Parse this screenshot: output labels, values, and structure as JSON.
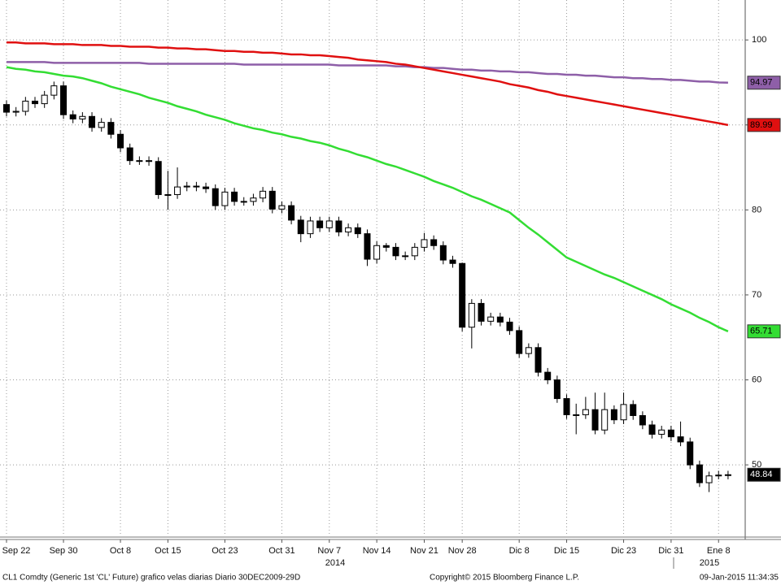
{
  "chart_data": {
    "type": "candlestick",
    "categories": [
      "Sep 22",
      null,
      null,
      null,
      null,
      null,
      "Sep 30",
      null,
      null,
      null,
      null,
      null,
      "Oct 8",
      null,
      null,
      null,
      null,
      "Oct 15",
      null,
      null,
      null,
      null,
      null,
      "Oct 23",
      null,
      null,
      null,
      null,
      null,
      "Oct 31",
      null,
      null,
      null,
      null,
      "Nov 7",
      null,
      null,
      null,
      null,
      "Nov 14",
      null,
      null,
      null,
      null,
      "Nov 21",
      null,
      null,
      null,
      "Nov 28",
      null,
      null,
      null,
      null,
      null,
      "Dic 8",
      null,
      null,
      null,
      null,
      "Dic 15",
      null,
      null,
      null,
      null,
      null,
      "Dic 23",
      null,
      null,
      null,
      null,
      "Dic 31",
      null,
      null,
      null,
      null,
      "Ene 8",
      null
    ],
    "years": [
      "2014",
      "2015"
    ],
    "ohlc": {
      "up_color": "#ffffff",
      "down_color": "#000000",
      "open": [
        92.4,
        91.5,
        91.6,
        92.8,
        92.5,
        93.5,
        94.6,
        91.2,
        90.7,
        91.0,
        89.7,
        90.3,
        88.9,
        87.3,
        85.8,
        85.8,
        85.7,
        81.8,
        81.8,
        82.7,
        82.8,
        82.7,
        82.5,
        80.5,
        82.1,
        81.0,
        81.0,
        81.4,
        82.2,
        80.1,
        80.5,
        78.8,
        77.2,
        78.7,
        77.9,
        78.7,
        77.4,
        77.9,
        77.2,
        74.2,
        75.8,
        75.6,
        74.6,
        74.6,
        75.6,
        76.5,
        75.8,
        74.1,
        73.7,
        66.2,
        69.0,
        66.9,
        67.4,
        66.8,
        65.8,
        63.1,
        63.8,
        60.9,
        60.0,
        57.8,
        55.9,
        55.9,
        56.5,
        54.1,
        56.5,
        55.3,
        57.1,
        55.8,
        54.7,
        53.6,
        54.1,
        53.3,
        52.7,
        50.0,
        47.9,
        48.7,
        48.8
      ],
      "high": [
        92.9,
        92.1,
        93.3,
        93.3,
        94.0,
        95.1,
        95.1,
        91.7,
        91.5,
        91.5,
        90.8,
        90.8,
        89.4,
        87.8,
        86.3,
        86.3,
        86.2,
        84.6,
        85.0,
        83.3,
        83.3,
        83.2,
        83.0,
        82.6,
        82.6,
        81.5,
        81.9,
        82.7,
        82.7,
        81.0,
        81.0,
        79.3,
        79.2,
        79.2,
        79.2,
        79.2,
        78.4,
        78.4,
        77.7,
        76.3,
        76.1,
        76.1,
        75.1,
        76.1,
        77.3,
        77.0,
        76.3,
        74.6,
        73.8,
        69.5,
        69.5,
        67.9,
        67.9,
        67.3,
        66.3,
        64.3,
        64.3,
        61.4,
        60.5,
        58.3,
        57.2,
        58.0,
        58.5,
        58.5,
        57.0,
        58.5,
        57.6,
        56.3,
        55.2,
        54.6,
        54.6,
        55.1,
        53.2,
        50.5,
        49.2,
        49.3,
        49.3
      ],
      "low": [
        91.0,
        91.0,
        91.1,
        92.0,
        92.0,
        93.0,
        90.7,
        90.2,
        90.2,
        89.2,
        89.2,
        88.4,
        86.8,
        85.3,
        85.3,
        85.2,
        81.3,
        80.0,
        81.3,
        82.2,
        82.2,
        82.0,
        80.0,
        80.0,
        80.5,
        80.5,
        80.5,
        80.9,
        79.6,
        79.6,
        78.3,
        76.2,
        76.7,
        77.4,
        77.4,
        76.9,
        76.9,
        76.7,
        73.4,
        73.7,
        75.1,
        74.1,
        74.1,
        74.1,
        75.1,
        75.3,
        73.6,
        73.2,
        65.7,
        63.7,
        66.4,
        66.4,
        66.3,
        65.3,
        62.6,
        62.6,
        60.4,
        59.5,
        57.3,
        55.4,
        53.6,
        55.4,
        53.6,
        53.6,
        54.8,
        54.8,
        55.3,
        54.2,
        53.1,
        53.1,
        52.8,
        52.2,
        49.5,
        47.4,
        46.8,
        48.3,
        48.3
      ],
      "close": [
        91.5,
        91.6,
        92.8,
        92.5,
        93.5,
        94.6,
        91.2,
        90.7,
        91.0,
        89.7,
        90.3,
        88.9,
        87.3,
        85.8,
        85.8,
        85.7,
        81.8,
        81.8,
        82.7,
        82.8,
        82.7,
        82.5,
        80.5,
        82.1,
        81.0,
        81.0,
        81.4,
        82.2,
        80.1,
        80.5,
        78.8,
        77.2,
        78.7,
        77.9,
        78.7,
        77.4,
        77.9,
        77.2,
        74.2,
        75.8,
        75.6,
        74.6,
        74.6,
        75.6,
        76.5,
        75.8,
        74.1,
        73.7,
        66.2,
        69.0,
        66.9,
        67.4,
        66.8,
        65.8,
        63.1,
        63.8,
        60.9,
        60.0,
        57.8,
        55.9,
        55.9,
        56.5,
        54.1,
        56.5,
        55.3,
        57.1,
        55.8,
        54.7,
        53.6,
        54.1,
        53.3,
        52.7,
        50.0,
        47.9,
        48.7,
        48.8,
        48.84
      ]
    },
    "series": [
      {
        "color": "#8e5fa8",
        "values": [
          97.4,
          97.4,
          97.4,
          97.4,
          97.4,
          97.3,
          97.3,
          97.3,
          97.3,
          97.3,
          97.3,
          97.3,
          97.3,
          97.3,
          97.3,
          97.2,
          97.2,
          97.2,
          97.2,
          97.2,
          97.2,
          97.2,
          97.2,
          97.2,
          97.2,
          97.1,
          97.1,
          97.1,
          97.1,
          97.1,
          97.1,
          97.1,
          97.1,
          97.1,
          97.1,
          97.0,
          97.0,
          97.0,
          97.0,
          97.0,
          97.0,
          96.9,
          96.9,
          96.8,
          96.8,
          96.7,
          96.7,
          96.6,
          96.5,
          96.5,
          96.4,
          96.4,
          96.3,
          96.3,
          96.2,
          96.2,
          96.1,
          96.0,
          96.0,
          95.9,
          95.9,
          95.8,
          95.8,
          95.7,
          95.6,
          95.6,
          95.5,
          95.5,
          95.4,
          95.4,
          95.3,
          95.3,
          95.2,
          95.1,
          95.1,
          95.0,
          94.97
        ]
      },
      {
        "color": "#e01010",
        "values": [
          99.7,
          99.7,
          99.6,
          99.6,
          99.6,
          99.5,
          99.5,
          99.5,
          99.4,
          99.4,
          99.4,
          99.3,
          99.3,
          99.2,
          99.2,
          99.2,
          99.1,
          99.1,
          99.0,
          99.0,
          98.9,
          98.9,
          98.8,
          98.7,
          98.7,
          98.6,
          98.6,
          98.5,
          98.5,
          98.4,
          98.3,
          98.3,
          98.2,
          98.2,
          98.1,
          98.0,
          97.9,
          97.7,
          97.6,
          97.5,
          97.4,
          97.2,
          97.1,
          96.9,
          96.7,
          96.5,
          96.3,
          96.1,
          95.9,
          95.7,
          95.5,
          95.3,
          95.1,
          94.8,
          94.6,
          94.4,
          94.1,
          93.9,
          93.6,
          93.4,
          93.2,
          93.0,
          92.8,
          92.6,
          92.4,
          92.2,
          92.0,
          91.8,
          91.6,
          91.4,
          91.2,
          91.0,
          90.8,
          90.6,
          90.4,
          90.2,
          89.99
        ]
      },
      {
        "color": "#33dd33",
        "values": [
          96.8,
          96.6,
          96.5,
          96.3,
          96.2,
          96.0,
          95.8,
          95.7,
          95.5,
          95.2,
          94.9,
          94.5,
          94.2,
          93.9,
          93.6,
          93.2,
          92.9,
          92.6,
          92.2,
          91.9,
          91.6,
          91.2,
          90.9,
          90.6,
          90.2,
          89.9,
          89.6,
          89.4,
          89.1,
          88.9,
          88.6,
          88.4,
          88.1,
          87.9,
          87.6,
          87.2,
          86.9,
          86.5,
          86.2,
          85.8,
          85.4,
          85.1,
          84.7,
          84.3,
          83.9,
          83.4,
          83.0,
          82.6,
          82.1,
          81.6,
          81.2,
          80.7,
          80.2,
          79.7,
          78.8,
          77.9,
          77.1,
          76.2,
          75.3,
          74.4,
          73.9,
          73.4,
          72.9,
          72.4,
          72.0,
          71.5,
          71.0,
          70.5,
          70.0,
          69.5,
          68.9,
          68.4,
          67.9,
          67.3,
          66.8,
          66.2,
          65.71
        ]
      }
    ],
    "ylim": [
      41.6,
      104.7
    ],
    "yticks": [
      50,
      60,
      70,
      80,
      90,
      100
    ],
    "grid": true,
    "footer": {
      "left": "CL1 Comdty (Generic 1st 'CL' Future) grafico velas diarias  Diario 30DEC2009-29D",
      "center": "Copyright© 2015 Bloomberg Finance L.P.",
      "right": "09-Jan-2015 11:34:35"
    }
  }
}
